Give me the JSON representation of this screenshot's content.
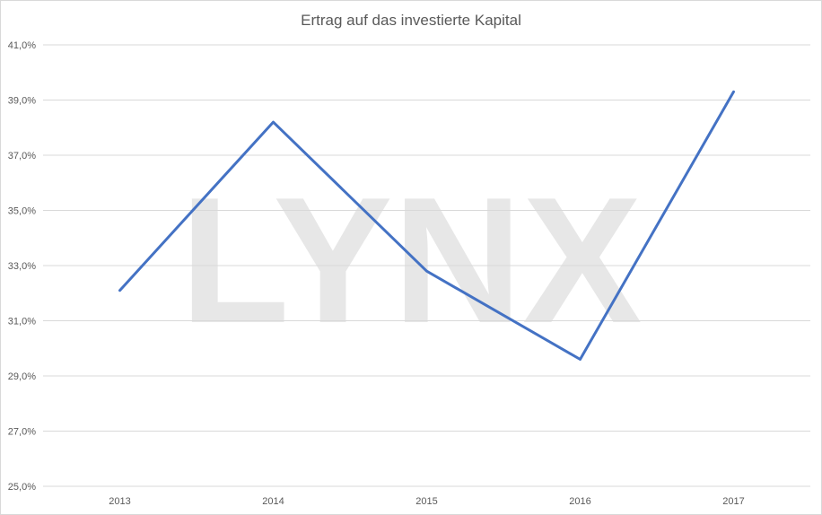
{
  "chart_data": {
    "type": "line",
    "title": "Ertrag auf das investierte Kapital",
    "watermark": "LYNX",
    "categories": [
      "2013",
      "2014",
      "2015",
      "2016",
      "2017"
    ],
    "series": [
      {
        "values": [
          32.1,
          38.2,
          32.8,
          29.6,
          39.3
        ],
        "color": "#4472c4"
      }
    ],
    "ylim": [
      25,
      41
    ],
    "y_ticks": [
      25,
      27,
      29,
      31,
      33,
      35,
      37,
      39,
      41
    ],
    "y_tick_labels": [
      "25,0%",
      "27,0%",
      "29,0%",
      "31,0%",
      "33,0%",
      "35,0%",
      "37,0%",
      "39,0%",
      "41,0%"
    ],
    "xlabel": "",
    "ylabel": "",
    "grid": true,
    "legend": "none"
  }
}
